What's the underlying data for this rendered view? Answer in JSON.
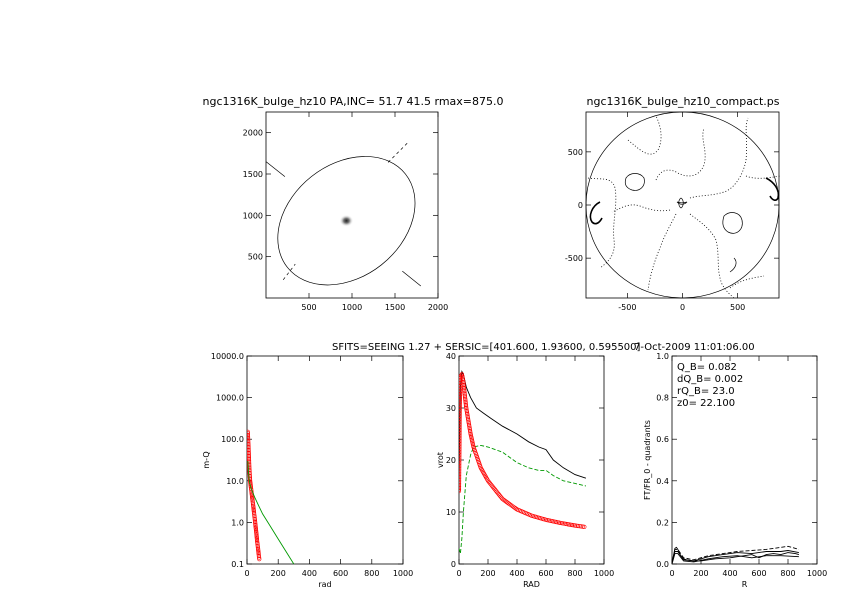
{
  "header": {
    "left_title": "ngc1316K_bulge_hz10 PA,INC= 51.7 41.5 rmax=875.0",
    "right_title": "ngc1316K_bulge_hz10_compact.ps",
    "mid_title": "SFITS=SEEING 1.27 + SERSIC=[401.600, 1.93600, 0.595500]",
    "timestamp": "7-Oct-2009 11:01:06.00"
  },
  "chart_data": [
    {
      "id": "image-panel",
      "type": "scatter",
      "title": "ngc1316K_bulge_hz10 PA,INC= 51.7 41.5 rmax=875.0",
      "xlim": [
        0,
        2000
      ],
      "ylim": [
        0,
        2250
      ],
      "x_ticks": [
        500,
        1000,
        1500,
        2000
      ],
      "y_ticks": [
        500,
        1000,
        1500,
        2000
      ],
      "center": [
        935,
        935
      ],
      "ellipse": {
        "semi_major": 875,
        "semi_minor": 655,
        "pa_deg": 51.7
      },
      "major_axis_line": [
        [
          0,
          1650
        ],
        [
          1800,
          145
        ]
      ],
      "minor_axis_dashed": [
        [
          [
            1420,
            1640
          ],
          [
            1650,
            1880
          ]
        ],
        [
          [
            200,
            220
          ],
          [
            340,
            410
          ]
        ]
      ]
    },
    {
      "id": "contour-panel",
      "type": "scatter",
      "title": "ngc1316K_bulge_hz10_compact.ps",
      "xlim": [
        -875,
        875
      ],
      "ylim": [
        -875,
        875
      ],
      "x_ticks": [
        -500,
        0,
        500
      ],
      "y_ticks": [
        -500,
        0,
        500
      ],
      "circle_radius": 875
    },
    {
      "id": "m-q-panel",
      "type": "line",
      "xlabel": "rad",
      "ylabel": "m-Q",
      "xlim": [
        0,
        1000
      ],
      "ylim": [
        0.1,
        10000
      ],
      "log_y": true,
      "x_ticks": [
        0,
        200,
        400,
        600,
        800,
        1000
      ],
      "y_ticks": [
        "0.1",
        "1.0",
        "10.0",
        "100.0",
        "1000.0",
        "10000.0"
      ],
      "series": [
        {
          "color": "#ff0000",
          "style": "markers",
          "x": [
            5,
            10,
            15,
            20,
            25,
            30,
            35,
            40,
            45,
            50,
            55,
            60,
            65,
            70,
            75,
            80
          ],
          "y": [
            150,
            60,
            20,
            10,
            7,
            5,
            3.5,
            2.5,
            1.7,
            1.2,
            0.8,
            0.55,
            0.35,
            0.25,
            0.17,
            0.12
          ]
        },
        {
          "color": "#009900",
          "style": "solid",
          "x": [
            5,
            10,
            15,
            20,
            30,
            50,
            75,
            100,
            150,
            200,
            250,
            300
          ],
          "y": [
            30,
            15,
            10,
            8,
            6,
            4,
            2.5,
            1.6,
            0.8,
            0.4,
            0.2,
            0.1
          ]
        }
      ]
    },
    {
      "id": "vrot-panel",
      "type": "line",
      "xlabel": "RAD",
      "ylabel": "vrot",
      "xlim": [
        0,
        1000
      ],
      "ylim": [
        0,
        40
      ],
      "x_ticks": [
        0,
        200,
        400,
        600,
        800,
        1000
      ],
      "y_ticks": [
        0,
        10,
        20,
        30,
        40
      ],
      "series": [
        {
          "color": "#000000",
          "style": "solid",
          "x": [
            0,
            10,
            20,
            30,
            50,
            80,
            120,
            170,
            220,
            300,
            400,
            480,
            550,
            600,
            650,
            720,
            800,
            875
          ],
          "y": [
            16,
            34,
            37,
            36.5,
            34,
            32,
            30,
            29,
            28,
            26.5,
            25,
            23.5,
            22.5,
            22,
            20,
            18.5,
            17.2,
            16.5
          ]
        },
        {
          "color": "#009900",
          "style": "dashed",
          "x": [
            0,
            10,
            20,
            30,
            50,
            80,
            100,
            150,
            200,
            300,
            400,
            480,
            550,
            600,
            650,
            720,
            800,
            875
          ],
          "y": [
            3,
            2,
            5,
            10,
            17,
            21,
            22.5,
            22.8,
            22.5,
            21.5,
            19.5,
            18.5,
            18,
            18,
            17,
            16,
            15.5,
            15
          ]
        },
        {
          "color": "#ff0000",
          "style": "markers",
          "x": [
            0,
            5,
            10,
            20,
            30,
            50,
            80,
            100,
            150,
            200,
            300,
            400,
            500,
            600,
            700,
            800,
            875
          ],
          "y": [
            14,
            30,
            36,
            36.5,
            35,
            30,
            25,
            22.5,
            18.5,
            16,
            12.5,
            10.5,
            9.3,
            8.5,
            7.9,
            7.4,
            7.1
          ]
        }
      ]
    },
    {
      "id": "ft-panel",
      "type": "line",
      "xlabel": "R",
      "ylabel": "FT/FR_0 - quadrants",
      "xlim": [
        0,
        1000
      ],
      "ylim": [
        0,
        1
      ],
      "x_ticks": [
        0,
        200,
        400,
        600,
        800,
        1000
      ],
      "y_ticks": [
        "0.0",
        "0.2",
        "0.4",
        "0.6",
        "0.8",
        "1.0"
      ],
      "annotations": [
        "Q_B=  0.082",
        "dQ_B=  0.002",
        "rQ_B=  23.0",
        "z0= 22.100"
      ],
      "series": [
        {
          "color": "#000000",
          "style": "solid",
          "x": [
            0,
            10,
            20,
            30,
            40,
            60,
            80,
            100,
            150,
            200,
            250,
            300,
            400,
            450,
            500,
            550,
            600,
            650,
            700,
            750,
            800,
            850,
            875
          ],
          "y": [
            0.01,
            0.04,
            0.075,
            0.08,
            0.07,
            0.04,
            0.025,
            0.02,
            0.015,
            0.015,
            0.02,
            0.025,
            0.03,
            0.035,
            0.04,
            0.045,
            0.03,
            0.045,
            0.05,
            0.045,
            0.055,
            0.05,
            0.045
          ]
        },
        {
          "color": "#000000",
          "style": "solid",
          "x": [
            0,
            20,
            40,
            80,
            150,
            250,
            350,
            450,
            550,
            650,
            750,
            800,
            875
          ],
          "y": [
            0.005,
            0.06,
            0.06,
            0.02,
            0.015,
            0.035,
            0.045,
            0.055,
            0.05,
            0.06,
            0.06,
            0.065,
            0.055
          ]
        },
        {
          "color": "#000000",
          "style": "dashed",
          "x": [
            0,
            20,
            40,
            80,
            150,
            250,
            350,
            450,
            550,
            650,
            700,
            750,
            800,
            875
          ],
          "y": [
            0.005,
            0.07,
            0.07,
            0.03,
            0.02,
            0.04,
            0.05,
            0.06,
            0.065,
            0.07,
            0.075,
            0.08,
            0.085,
            0.07
          ]
        },
        {
          "color": "#000000",
          "style": "solid",
          "x": [
            0,
            20,
            40,
            80,
            150,
            250,
            350,
            450,
            550,
            650,
            750,
            875
          ],
          "y": [
            0.0,
            0.05,
            0.05,
            0.015,
            0.01,
            0.025,
            0.035,
            0.04,
            0.03,
            0.04,
            0.04,
            0.035
          ]
        }
      ]
    }
  ]
}
